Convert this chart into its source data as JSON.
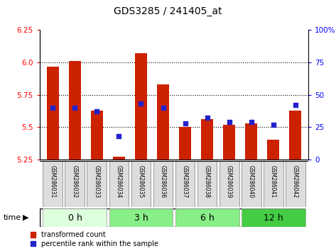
{
  "title": "GDS3285 / 241405_at",
  "samples": [
    "GSM286031",
    "GSM286032",
    "GSM286033",
    "GSM286034",
    "GSM286035",
    "GSM286036",
    "GSM286037",
    "GSM286038",
    "GSM286039",
    "GSM286040",
    "GSM286041",
    "GSM286042"
  ],
  "transformed_count": [
    5.97,
    6.01,
    5.63,
    5.27,
    6.07,
    5.83,
    5.5,
    5.56,
    5.52,
    5.53,
    5.4,
    5.63
  ],
  "percentile_rank": [
    40,
    40,
    37,
    18,
    43,
    40,
    28,
    32,
    29,
    29,
    27,
    42
  ],
  "ylim_left": [
    5.25,
    6.25
  ],
  "ylim_right": [
    0,
    100
  ],
  "yticks_left": [
    5.25,
    5.5,
    5.75,
    6.0,
    6.25
  ],
  "yticks_right": [
    0,
    25,
    50,
    75,
    100
  ],
  "bar_color": "#cc2200",
  "dot_color": "#2222cc",
  "baseline": 5.25,
  "group_defs": [
    {
      "label": "0 h",
      "indices": [
        0,
        1,
        2
      ],
      "color": "#ddffdd"
    },
    {
      "label": "3 h",
      "indices": [
        3,
        4,
        5
      ],
      "color": "#88ee88"
    },
    {
      "label": "6 h",
      "indices": [
        6,
        7,
        8
      ],
      "color": "#88ee88"
    },
    {
      "label": "12 h",
      "indices": [
        9,
        10,
        11
      ],
      "color": "#44cc44"
    }
  ],
  "sample_box_color": "#dddddd",
  "sample_box_edge": "#999999"
}
